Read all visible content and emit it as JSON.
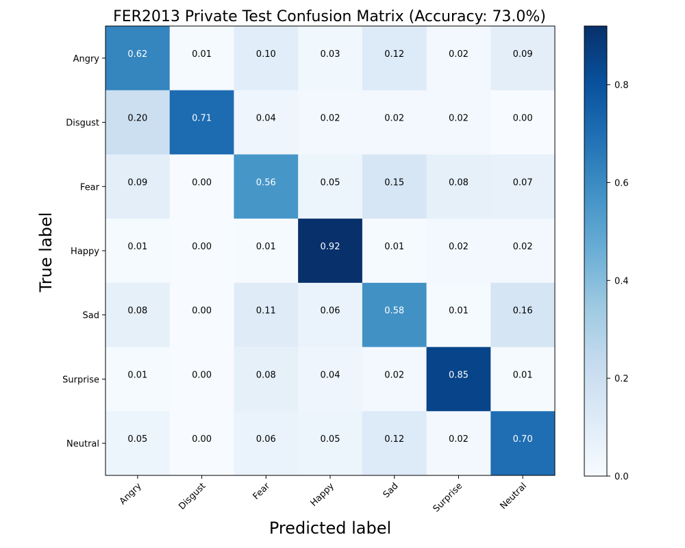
{
  "chart_data": {
    "type": "heatmap",
    "title": "FER2013 Private Test Confusion Matrix (Accuracy: 73.0%)",
    "xlabel": "Predicted label",
    "ylabel": "True label",
    "x_categories": [
      "Angry",
      "Disgust",
      "Fear",
      "Happy",
      "Sad",
      "Surprise",
      "Neutral"
    ],
    "y_categories": [
      "Angry",
      "Disgust",
      "Fear",
      "Happy",
      "Sad",
      "Surprise",
      "Neutral"
    ],
    "values": [
      [
        0.62,
        0.01,
        0.1,
        0.03,
        0.12,
        0.02,
        0.09
      ],
      [
        0.2,
        0.71,
        0.04,
        0.02,
        0.02,
        0.02,
        0.0
      ],
      [
        0.09,
        0.0,
        0.56,
        0.05,
        0.15,
        0.08,
        0.07
      ],
      [
        0.01,
        0.0,
        0.01,
        0.92,
        0.01,
        0.02,
        0.02
      ],
      [
        0.08,
        0.0,
        0.11,
        0.06,
        0.58,
        0.01,
        0.16
      ],
      [
        0.01,
        0.0,
        0.08,
        0.04,
        0.02,
        0.85,
        0.01
      ],
      [
        0.05,
        0.0,
        0.06,
        0.05,
        0.12,
        0.02,
        0.7
      ]
    ],
    "colormap": "Blues",
    "colorbar": {
      "range": [
        0.0,
        0.92
      ],
      "ticks": [
        0.0,
        0.2,
        0.4,
        0.6,
        0.8
      ],
      "tick_labels": [
        "0.0",
        "0.2",
        "0.4",
        "0.6",
        "0.8"
      ]
    },
    "text_threshold": 0.46,
    "colors": {
      "text_dark": "#000000",
      "text_light": "#ffffff",
      "frame": "#000000"
    }
  }
}
